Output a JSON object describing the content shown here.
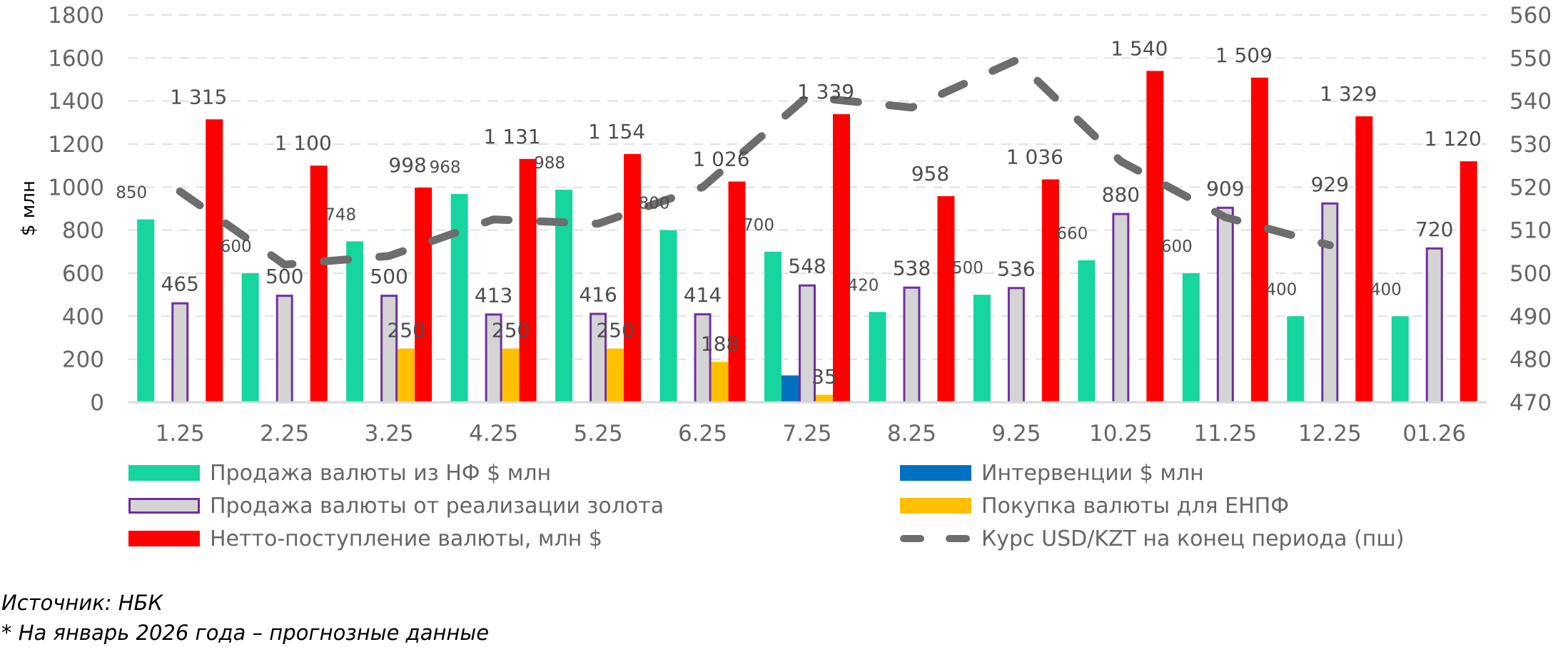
{
  "chart_data": {
    "type": "bar",
    "categories": [
      "1.25",
      "2.25",
      "3.25",
      "4.25",
      "5.25",
      "6.25",
      "7.25",
      "8.25",
      "9.25",
      "10.25",
      "11.25",
      "12.25",
      "01.26"
    ],
    "ylabel": "$ млн",
    "ylim": [
      0,
      1800
    ],
    "yticks": [
      "0",
      "200",
      "400",
      "600",
      "800",
      "1000",
      "1200",
      "1400",
      "1600",
      "1800"
    ],
    "y2lim": [
      470,
      560
    ],
    "y2ticks": [
      "470",
      "480",
      "490",
      "500",
      "510",
      "520",
      "530",
      "540",
      "550",
      "560"
    ],
    "grid": true,
    "legend_position": "bottom",
    "series": [
      {
        "name": "Продажа валюты из НФ $ млн",
        "type": "bar",
        "color": "#16d59e",
        "values": [
          850,
          600,
          748,
          968,
          988,
          800,
          700,
          420,
          500,
          660,
          600,
          400,
          400
        ],
        "labels": [
          "850",
          "600",
          "748",
          "968",
          "988",
          "800",
          "700",
          "420",
          "500",
          "660",
          "600",
          "400",
          "400"
        ]
      },
      {
        "name": "Интервенции $ млн",
        "type": "bar",
        "color": "#0070c0",
        "values": [
          0,
          0,
          0,
          0,
          0,
          0,
          125,
          0,
          0,
          0,
          0,
          0,
          0
        ],
        "labels": [
          "",
          "",
          "",
          "",
          "",
          "",
          "",
          "",
          "",
          "",
          "",
          "",
          ""
        ]
      },
      {
        "name": "Продажа валюты от реализации золота",
        "type": "bar",
        "color": "#d4d4d4",
        "border": "#7030a0",
        "values": [
          465,
          500,
          500,
          413,
          416,
          414,
          548,
          538,
          536,
          880,
          909,
          929,
          720
        ],
        "labels": [
          "465",
          "500",
          "500",
          "413",
          "416",
          "414",
          "548",
          "538",
          "536",
          "880",
          "909",
          "929",
          "720"
        ]
      },
      {
        "name": "Покупка валюты для ЕНПФ",
        "type": "bar",
        "color": "#ffc000",
        "values": [
          0,
          0,
          250,
          250,
          250,
          188,
          35,
          0,
          0,
          0,
          0,
          0,
          0
        ],
        "labels": [
          "",
          "",
          "250",
          "250",
          "250",
          "188",
          "35",
          "",
          "",
          "",
          "",
          "",
          ""
        ]
      },
      {
        "name": "Нетто-поступление валюты, млн $",
        "type": "bar",
        "color": "#ff0000",
        "values": [
          1315,
          1100,
          998,
          1131,
          1154,
          1026,
          1339,
          958,
          1036,
          1540,
          1509,
          1329,
          1120
        ],
        "labels": [
          "1 315",
          "1 100",
          "998",
          "1 131",
          "1 154",
          "1 026",
          "1 339",
          "958",
          "1 036",
          "1 540",
          "1 509",
          "1 329",
          "1 120"
        ]
      },
      {
        "name": "Курс USD/KZT на конец периода (пш)",
        "type": "line",
        "axis": "secondary",
        "color": "#6d6d6d",
        "dashed": true,
        "values": [
          519,
          502,
          504,
          512.5,
          511.5,
          520,
          541,
          538.5,
          549.5,
          526,
          513,
          506.5,
          null
        ]
      }
    ]
  },
  "legend": {
    "left": [
      "Продажа валюты из НФ $ млн",
      "Продажа валюты от реализации золота",
      "Нетто-поступление валюты, млн $"
    ],
    "right": [
      "Интервенции $ млн",
      "Покупка валюты для ЕНПФ",
      "Курс USD/KZT на конец периода (пш)"
    ]
  },
  "footer": {
    "source": "Источник: НБК",
    "note": "* На январь 2026 года – прогнозные данные"
  }
}
